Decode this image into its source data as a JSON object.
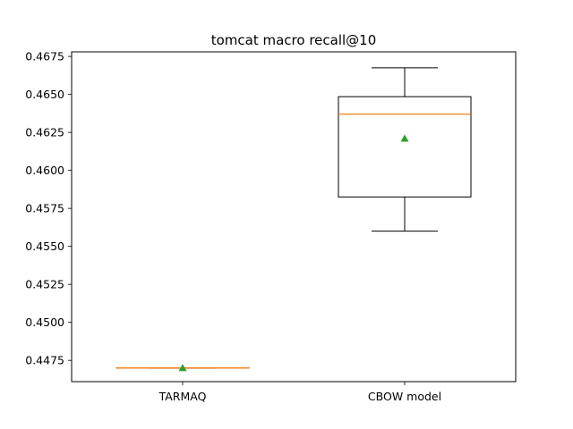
{
  "chart_data": {
    "type": "box",
    "title": "tomcat macro recall@10",
    "xlabel": "",
    "ylabel": "",
    "ylim": [
      0.4461,
      0.4678
    ],
    "yticks": [
      0.4475,
      0.45,
      0.4525,
      0.455,
      0.4575,
      0.46,
      0.4625,
      0.465,
      0.4675
    ],
    "ytick_labels": [
      "0.4475",
      "0.4500",
      "0.4525",
      "0.4550",
      "0.4575",
      "0.4600",
      "0.4625",
      "0.4650",
      "0.4675"
    ],
    "grid": false,
    "categories": [
      "TARMAQ",
      "CBOW model"
    ],
    "boxes": [
      {
        "label": "TARMAQ",
        "whisker_low": 0.447,
        "q1": 0.447,
        "median": 0.447,
        "q3": 0.447,
        "whisker_high": 0.447,
        "mean": 0.447
      },
      {
        "label": "CBOW model",
        "whisker_low": 0.456,
        "q1": 0.45825,
        "median": 0.4637,
        "q3": 0.46485,
        "whisker_high": 0.46675,
        "mean": 0.4621
      }
    ],
    "colors": {
      "box": "#000000",
      "median": "#ff7f0e",
      "mean": "#2ca02c"
    }
  }
}
